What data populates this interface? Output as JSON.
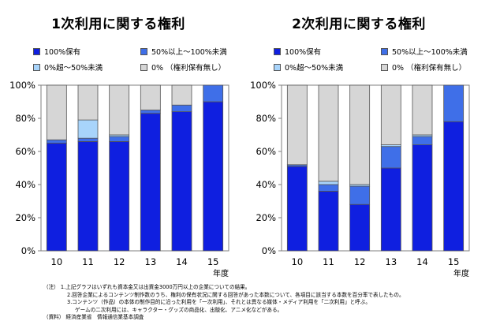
{
  "chart_data": [
    {
      "type": "bar",
      "stacked": true,
      "title": "1次利用に関する権利",
      "categories": [
        "10",
        "11",
        "12",
        "13",
        "14",
        "15"
      ],
      "xlabel": "年度",
      "ylabel": "",
      "ylim": [
        0,
        100
      ],
      "yticks": [
        "0%",
        "20%",
        "40%",
        "60%",
        "80%",
        "100%"
      ],
      "legend_position": "top",
      "series": [
        {
          "name": "100%保有",
          "color": "#0f1fe0",
          "values": [
            65,
            66,
            66,
            83,
            84,
            90
          ]
        },
        {
          "name": "50%以上～100%未満",
          "color": "#3f6fe8",
          "values": [
            2,
            2,
            3,
            2,
            4,
            10
          ]
        },
        {
          "name": "0%超～50%未満",
          "color": "#a8d4fb",
          "values": [
            0,
            11,
            1,
            0,
            0,
            0
          ]
        },
        {
          "name": "0% （権利保有無し）",
          "color": "#d6d6d6",
          "values": [
            33,
            21,
            30,
            15,
            12,
            0
          ]
        }
      ]
    },
    {
      "type": "bar",
      "stacked": true,
      "title": "2次利用に関する権利",
      "categories": [
        "10",
        "11",
        "12",
        "13",
        "14",
        "15"
      ],
      "xlabel": "年度",
      "ylabel": "",
      "ylim": [
        0,
        100
      ],
      "yticks": [
        "0%",
        "20%",
        "40%",
        "60%",
        "80%",
        "100%"
      ],
      "legend_position": "top",
      "series": [
        {
          "name": "100%保有",
          "color": "#0f1fe0",
          "values": [
            51,
            36,
            28,
            50,
            64,
            78
          ]
        },
        {
          "name": "50%以上～100%未満",
          "color": "#3f6fe8",
          "values": [
            1,
            4,
            11,
            13,
            5,
            22
          ]
        },
        {
          "name": "0%超～50%未満",
          "color": "#a8d4fb",
          "values": [
            0,
            2,
            1,
            1,
            1,
            0
          ]
        },
        {
          "name": "0% （権利保有無し）",
          "color": "#d6d6d6",
          "values": [
            48,
            58,
            60,
            36,
            30,
            0
          ]
        }
      ]
    }
  ],
  "notes": {
    "label": "（注）",
    "lines": [
      "1.上記グラフはいずれも資本金又は出資金3000万円以上の企業についての結果。",
      "2.回答企業によるコンテンツ制作数のうち、権利の保有状況に関する回答があった本数について、各項目に該当する本数を百分率で表したもの。",
      "3.コンテンツ（作品）の本体の制作目的に沿った利用を「一次利用」、それとは異なる媒体・メディア利用を「二次利用」と呼ぶ。",
      "ゲームの二次利用には、キャラクター・グッズの商品化、出版化、アニメ化などがある。"
    ],
    "source_label": "（資料）",
    "source": "経済産業省　情報通信業基本調査"
  }
}
